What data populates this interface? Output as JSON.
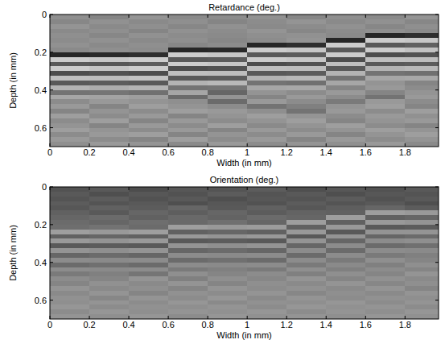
{
  "chart_data": [
    {
      "type": "heatmap",
      "title": "Retardance (deg.)",
      "x_label": "Width (in mm)",
      "y_label": "Depth (in mm)",
      "xlim": [
        0,
        1.97
      ],
      "ylim": [
        0,
        0.7
      ],
      "xticks": [
        0,
        0.2,
        0.4,
        0.6,
        0.8,
        1,
        1.2,
        1.4,
        1.6,
        1.8
      ],
      "yticks": [
        0,
        0.2,
        0.4,
        0.6
      ],
      "clim": [
        0,
        100
      ],
      "x_edges": [
        0,
        0.2,
        0.4,
        0.6,
        0.8,
        1,
        1.2,
        1.4,
        1.6,
        1.8,
        1.97
      ],
      "y_edges": [
        0,
        0.025,
        0.05,
        0.075,
        0.1,
        0.125,
        0.15,
        0.175,
        0.2,
        0.225,
        0.25,
        0.275,
        0.3,
        0.325,
        0.35,
        0.375,
        0.4,
        0.425,
        0.45,
        0.475,
        0.5,
        0.525,
        0.55,
        0.575,
        0.6,
        0.625,
        0.65,
        0.675,
        0.7
      ],
      "cells": [
        [
          56,
          52,
          58,
          54,
          55,
          57,
          53,
          56,
          54,
          58
        ],
        [
          53,
          57,
          54,
          56,
          52,
          55,
          58,
          54,
          57,
          53
        ],
        [
          58,
          54,
          56,
          53,
          57,
          54,
          55,
          57,
          53,
          56
        ],
        [
          54,
          56,
          52,
          57,
          55,
          58,
          53,
          55,
          56,
          54
        ],
        [
          56,
          53,
          57,
          55,
          54,
          56,
          57,
          54,
          15,
          18
        ],
        [
          55,
          57,
          54,
          56,
          53,
          55,
          58,
          15,
          80,
          78
        ],
        [
          57,
          54,
          56,
          53,
          55,
          15,
          18,
          80,
          35,
          38
        ],
        [
          54,
          56,
          55,
          15,
          16,
          80,
          78,
          35,
          80,
          76
        ],
        [
          15,
          16,
          18,
          80,
          78,
          35,
          36,
          80,
          30,
          32
        ],
        [
          80,
          78,
          80,
          35,
          36,
          80,
          78,
          30,
          75,
          74
        ],
        [
          35,
          34,
          36,
          80,
          78,
          30,
          32,
          75,
          35,
          36
        ],
        [
          80,
          77,
          80,
          30,
          32,
          75,
          74,
          35,
          70,
          72
        ],
        [
          30,
          32,
          30,
          75,
          74,
          35,
          36,
          70,
          45,
          44
        ],
        [
          75,
          74,
          76,
          35,
          36,
          70,
          72,
          45,
          65,
          66
        ],
        [
          35,
          36,
          35,
          70,
          72,
          45,
          44,
          65,
          58,
          52
        ],
        [
          70,
          68,
          70,
          45,
          46,
          65,
          66,
          52,
          60,
          55
        ],
        [
          45,
          46,
          44,
          65,
          40,
          58,
          55,
          60,
          52,
          58
        ],
        [
          65,
          64,
          62,
          42,
          58,
          52,
          60,
          55,
          45,
          60
        ],
        [
          55,
          60,
          58,
          56,
          42,
          60,
          55,
          48,
          60,
          55
        ],
        [
          60,
          52,
          62,
          58,
          55,
          45,
          50,
          58,
          62,
          52
        ],
        [
          52,
          58,
          55,
          62,
          60,
          56,
          45,
          60,
          55,
          62
        ],
        [
          62,
          55,
          60,
          52,
          58,
          62,
          58,
          55,
          60,
          57
        ],
        [
          55,
          62,
          52,
          60,
          55,
          58,
          62,
          52,
          58,
          60
        ],
        [
          58,
          52,
          60,
          55,
          62,
          54,
          58,
          62,
          55,
          52
        ],
        [
          62,
          58,
          55,
          60,
          52,
          60,
          55,
          58,
          62,
          58
        ],
        [
          55,
          60,
          62,
          52,
          58,
          55,
          60,
          52,
          58,
          62
        ],
        [
          60,
          55,
          52,
          62,
          55,
          60,
          52,
          60,
          55,
          58
        ],
        [
          56,
          60,
          58,
          54,
          60,
          55,
          58,
          56,
          60,
          54
        ]
      ]
    },
    {
      "type": "heatmap",
      "title": "Orientation (deg.)",
      "x_label": "Width (in mm)",
      "y_label": "Depth (in mm)",
      "xlim": [
        0,
        1.97
      ],
      "ylim": [
        0,
        0.7
      ],
      "xticks": [
        0,
        0.2,
        0.4,
        0.6,
        0.8,
        1,
        1.2,
        1.4,
        1.6,
        1.8
      ],
      "yticks": [
        0,
        0.2,
        0.4,
        0.6
      ],
      "clim": [
        0,
        100
      ],
      "x_edges": [
        0,
        0.2,
        0.4,
        0.6,
        0.8,
        1,
        1.2,
        1.4,
        1.6,
        1.8,
        1.97
      ],
      "y_edges": [
        0,
        0.025,
        0.05,
        0.075,
        0.1,
        0.125,
        0.15,
        0.175,
        0.2,
        0.225,
        0.25,
        0.275,
        0.3,
        0.325,
        0.35,
        0.375,
        0.4,
        0.425,
        0.45,
        0.475,
        0.5,
        0.525,
        0.55,
        0.575,
        0.6,
        0.625,
        0.65,
        0.675,
        0.7
      ],
      "cells": [
        [
          32,
          35,
          30,
          34,
          33,
          36,
          31,
          34,
          32,
          35
        ],
        [
          35,
          31,
          34,
          32,
          36,
          33,
          35,
          31,
          34,
          33
        ],
        [
          33,
          36,
          32,
          35,
          31,
          34,
          33,
          36,
          32,
          35
        ],
        [
          36,
          33,
          35,
          31,
          34,
          32,
          36,
          33,
          35,
          31
        ],
        [
          34,
          38,
          36,
          40,
          35,
          38,
          34,
          37,
          40,
          36
        ],
        [
          38,
          35,
          40,
          37,
          40,
          36,
          39,
          38,
          62,
          60
        ],
        [
          40,
          42,
          38,
          41,
          39,
          42,
          40,
          62,
          38,
          40
        ],
        [
          42,
          40,
          43,
          41,
          44,
          40,
          62,
          38,
          60,
          58
        ],
        [
          43,
          45,
          42,
          62,
          60,
          61,
          38,
          60,
          35,
          36
        ],
        [
          62,
          60,
          62,
          38,
          40,
          38,
          60,
          35,
          58,
          58
        ],
        [
          38,
          40,
          38,
          60,
          58,
          60,
          35,
          58,
          40,
          42
        ],
        [
          60,
          58,
          60,
          35,
          36,
          35,
          58,
          40,
          55,
          56
        ],
        [
          35,
          36,
          35,
          58,
          56,
          58,
          40,
          55,
          42,
          44
        ],
        [
          58,
          56,
          58,
          40,
          42,
          40,
          55,
          42,
          55,
          54
        ],
        [
          40,
          42,
          40,
          55,
          54,
          55,
          42,
          55,
          48,
          50
        ],
        [
          55,
          54,
          55,
          42,
          44,
          42,
          55,
          48,
          56,
          52
        ],
        [
          42,
          44,
          42,
          55,
          54,
          55,
          48,
          54,
          50,
          56
        ],
        [
          55,
          54,
          55,
          48,
          50,
          48,
          56,
          50,
          55,
          52
        ],
        [
          48,
          50,
          46,
          56,
          52,
          55,
          50,
          56,
          52,
          58
        ],
        [
          55,
          52,
          58,
          50,
          56,
          53,
          58,
          52,
          57,
          54
        ],
        [
          52,
          57,
          54,
          58,
          52,
          56,
          54,
          58,
          53,
          56
        ],
        [
          58,
          54,
          56,
          52,
          58,
          55,
          57,
          54,
          58,
          52
        ],
        [
          54,
          58,
          52,
          57,
          55,
          58,
          53,
          56,
          54,
          58
        ],
        [
          57,
          53,
          58,
          55,
          59,
          54,
          58,
          55,
          57,
          56
        ],
        [
          56,
          58,
          55,
          59,
          54,
          57,
          56,
          59,
          55,
          58
        ],
        [
          59,
          55,
          57,
          56,
          58,
          55,
          59,
          57,
          58,
          55
        ],
        [
          55,
          59,
          56,
          58,
          57,
          59,
          55,
          58,
          56,
          59
        ],
        [
          58,
          56,
          59,
          55,
          59,
          57,
          58,
          56,
          59,
          57
        ]
      ]
    }
  ]
}
